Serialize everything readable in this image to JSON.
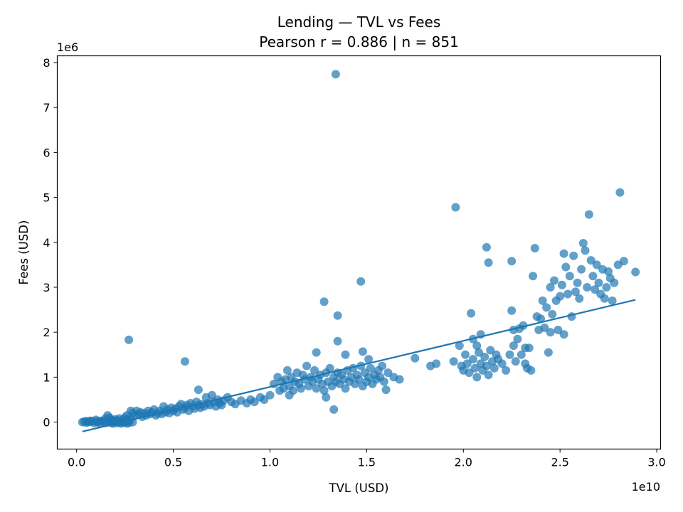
{
  "chart_data": {
    "type": "scatter",
    "title": "Lending — TVL vs Fees",
    "subtitle": "Pearson r = 0.886 | n = 851",
    "xlabel": "TVL (USD)",
    "ylabel": "Fees (USD)",
    "x_offset_label": "1e10",
    "y_offset_label": "1e6",
    "x_scale_factor": 10000000000.0,
    "y_scale_factor": 1000000.0,
    "xlim": [
      -0.1,
      3.02
    ],
    "ylim": [
      -0.6,
      8.15
    ],
    "x_ticks": [
      0.0,
      0.5,
      1.0,
      1.5,
      2.0,
      2.5,
      3.0
    ],
    "x_tick_labels": [
      "0.0",
      "0.5",
      "1.0",
      "1.5",
      "2.0",
      "2.5",
      "3.0"
    ],
    "y_ticks": [
      0,
      1,
      2,
      3,
      4,
      5,
      6,
      7,
      8
    ],
    "y_tick_labels": [
      "0",
      "1",
      "2",
      "3",
      "4",
      "5",
      "6",
      "7",
      "8"
    ],
    "grid": false,
    "legend": "none",
    "point_color": "#1f77b4",
    "point_alpha": 0.7,
    "trend_line": {
      "x": [
        0.03,
        2.89
      ],
      "y": [
        -0.21,
        2.72
      ],
      "color": "#1f77b4"
    },
    "points": [
      [
        0.03,
        0.0
      ],
      [
        0.04,
        0.01
      ],
      [
        0.05,
        0.02
      ],
      [
        0.05,
        -0.01
      ],
      [
        0.06,
        0.0
      ],
      [
        0.07,
        0.03
      ],
      [
        0.07,
        0.01
      ],
      [
        0.08,
        0.02
      ],
      [
        0.09,
        -0.02
      ],
      [
        0.1,
        0.01
      ],
      [
        0.1,
        0.05
      ],
      [
        0.11,
        0.0
      ],
      [
        0.12,
        0.02
      ],
      [
        0.12,
        -0.03
      ],
      [
        0.13,
        0.03
      ],
      [
        0.14,
        0.01
      ],
      [
        0.15,
        0.08
      ],
      [
        0.15,
        -0.02
      ],
      [
        0.16,
        0.15
      ],
      [
        0.16,
        0.02
      ],
      [
        0.17,
        0.0
      ],
      [
        0.17,
        0.1
      ],
      [
        0.18,
        -0.02
      ],
      [
        0.18,
        0.05
      ],
      [
        0.19,
        0.03
      ],
      [
        0.19,
        -0.03
      ],
      [
        0.2,
        0.06
      ],
      [
        0.2,
        0.01
      ],
      [
        0.21,
        -0.02
      ],
      [
        0.21,
        0.04
      ],
      [
        0.22,
        0.0
      ],
      [
        0.22,
        0.08
      ],
      [
        0.23,
        -0.03
      ],
      [
        0.23,
        0.02
      ],
      [
        0.24,
        0.05
      ],
      [
        0.24,
        -0.01
      ],
      [
        0.25,
        0.0
      ],
      [
        0.25,
        0.1
      ],
      [
        0.26,
        -0.03
      ],
      [
        0.26,
        0.05
      ],
      [
        0.26,
        0.15
      ],
      [
        0.27,
        0.03
      ],
      [
        0.27,
        -0.02
      ],
      [
        0.27,
        1.83
      ],
      [
        0.28,
        0.25
      ],
      [
        0.28,
        0.08
      ],
      [
        0.29,
        0.0
      ],
      [
        0.29,
        0.2
      ],
      [
        0.3,
        0.15
      ],
      [
        0.31,
        0.25
      ],
      [
        0.32,
        0.18
      ],
      [
        0.33,
        0.22
      ],
      [
        0.34,
        0.12
      ],
      [
        0.35,
        0.2
      ],
      [
        0.36,
        0.15
      ],
      [
        0.37,
        0.25
      ],
      [
        0.38,
        0.18
      ],
      [
        0.39,
        0.22
      ],
      [
        0.4,
        0.28
      ],
      [
        0.41,
        0.15
      ],
      [
        0.42,
        0.2
      ],
      [
        0.43,
        0.25
      ],
      [
        0.44,
        0.18
      ],
      [
        0.45,
        0.35
      ],
      [
        0.46,
        0.22
      ],
      [
        0.47,
        0.28
      ],
      [
        0.48,
        0.2
      ],
      [
        0.49,
        0.32
      ],
      [
        0.5,
        0.25
      ],
      [
        0.51,
        0.3
      ],
      [
        0.52,
        0.22
      ],
      [
        0.53,
        0.35
      ],
      [
        0.54,
        0.4
      ],
      [
        0.55,
        0.28
      ],
      [
        0.56,
        1.35
      ],
      [
        0.56,
        0.32
      ],
      [
        0.57,
        0.38
      ],
      [
        0.58,
        0.25
      ],
      [
        0.59,
        0.42
      ],
      [
        0.6,
        0.35
      ],
      [
        0.61,
        0.3
      ],
      [
        0.62,
        0.45
      ],
      [
        0.63,
        0.72
      ],
      [
        0.63,
        0.38
      ],
      [
        0.64,
        0.32
      ],
      [
        0.65,
        0.4
      ],
      [
        0.66,
        0.35
      ],
      [
        0.67,
        0.55
      ],
      [
        0.68,
        0.42
      ],
      [
        0.69,
        0.38
      ],
      [
        0.7,
        0.6
      ],
      [
        0.71,
        0.45
      ],
      [
        0.72,
        0.35
      ],
      [
        0.73,
        0.5
      ],
      [
        0.74,
        0.42
      ],
      [
        0.75,
        0.38
      ],
      [
        0.76,
        0.48
      ],
      [
        0.78,
        0.55
      ],
      [
        0.8,
        0.45
      ],
      [
        0.82,
        0.4
      ],
      [
        0.85,
        0.48
      ],
      [
        0.88,
        0.42
      ],
      [
        0.9,
        0.5
      ],
      [
        0.92,
        0.45
      ],
      [
        0.95,
        0.55
      ],
      [
        0.97,
        0.5
      ],
      [
        1.0,
        0.6
      ],
      [
        1.02,
        0.85
      ],
      [
        1.04,
        1.0
      ],
      [
        1.05,
        0.7
      ],
      [
        1.06,
        0.9
      ],
      [
        1.07,
        0.75
      ],
      [
        1.08,
        0.95
      ],
      [
        1.09,
        1.15
      ],
      [
        1.1,
        0.8
      ],
      [
        1.1,
        0.6
      ],
      [
        1.11,
        1.0
      ],
      [
        1.12,
        0.7
      ],
      [
        1.13,
        0.9
      ],
      [
        1.14,
        1.1
      ],
      [
        1.15,
        0.85
      ],
      [
        1.16,
        0.75
      ],
      [
        1.17,
        1.05
      ],
      [
        1.18,
        0.95
      ],
      [
        1.19,
        1.25
      ],
      [
        1.2,
        0.8
      ],
      [
        1.21,
        1.0
      ],
      [
        1.22,
        0.9
      ],
      [
        1.23,
        1.15
      ],
      [
        1.24,
        0.75
      ],
      [
        1.24,
        1.55
      ],
      [
        1.25,
        0.95
      ],
      [
        1.26,
        1.05
      ],
      [
        1.27,
        0.85
      ],
      [
        1.28,
        2.68
      ],
      [
        1.28,
        0.7
      ],
      [
        1.29,
        1.1
      ],
      [
        1.29,
        0.55
      ],
      [
        1.3,
        0.9
      ],
      [
        1.31,
        1.2
      ],
      [
        1.32,
        0.8
      ],
      [
        1.33,
        0.28
      ],
      [
        1.33,
        1.0
      ],
      [
        1.34,
        7.74
      ],
      [
        1.34,
        0.9
      ],
      [
        1.35,
        2.37
      ],
      [
        1.35,
        1.8
      ],
      [
        1.35,
        1.1
      ],
      [
        1.36,
        0.85
      ],
      [
        1.37,
        1.05
      ],
      [
        1.38,
        0.95
      ],
      [
        1.39,
        1.5
      ],
      [
        1.39,
        0.75
      ],
      [
        1.4,
        1.15
      ],
      [
        1.41,
        0.9
      ],
      [
        1.42,
        1.0
      ],
      [
        1.43,
        1.2
      ],
      [
        1.44,
        0.85
      ],
      [
        1.45,
        1.05
      ],
      [
        1.46,
        0.95
      ],
      [
        1.47,
        3.13
      ],
      [
        1.47,
        1.25
      ],
      [
        1.48,
        0.8
      ],
      [
        1.48,
        1.57
      ],
      [
        1.49,
        1.1
      ],
      [
        1.5,
        0.9
      ],
      [
        1.51,
        1.4
      ],
      [
        1.51,
        1.0
      ],
      [
        1.52,
        1.2
      ],
      [
        1.53,
        0.85
      ],
      [
        1.54,
        1.05
      ],
      [
        1.55,
        0.95
      ],
      [
        1.56,
        1.15
      ],
      [
        1.57,
        1.0
      ],
      [
        1.58,
        1.25
      ],
      [
        1.59,
        0.9
      ],
      [
        1.6,
        0.72
      ],
      [
        1.61,
        1.1
      ],
      [
        1.64,
        1.0
      ],
      [
        1.67,
        0.95
      ],
      [
        1.75,
        1.42
      ],
      [
        1.83,
        1.25
      ],
      [
        1.86,
        1.3
      ],
      [
        1.95,
        1.35
      ],
      [
        1.96,
        4.78
      ],
      [
        1.98,
        1.7
      ],
      [
        1.99,
        1.25
      ],
      [
        2.0,
        1.15
      ],
      [
        2.01,
        1.5
      ],
      [
        2.02,
        1.3
      ],
      [
        2.03,
        1.1
      ],
      [
        2.04,
        2.42
      ],
      [
        2.05,
        1.85
      ],
      [
        2.05,
        1.4
      ],
      [
        2.06,
        1.2
      ],
      [
        2.07,
        1.7
      ],
      [
        2.07,
        1.0
      ],
      [
        2.08,
        1.55
      ],
      [
        2.09,
        1.3
      ],
      [
        2.09,
        1.95
      ],
      [
        2.1,
        1.15
      ],
      [
        2.11,
        1.45
      ],
      [
        2.12,
        3.89
      ],
      [
        2.12,
        1.25
      ],
      [
        2.13,
        3.55
      ],
      [
        2.13,
        1.05
      ],
      [
        2.14,
        1.6
      ],
      [
        2.15,
        1.35
      ],
      [
        2.16,
        1.2
      ],
      [
        2.17,
        1.5
      ],
      [
        2.18,
        1.4
      ],
      [
        2.2,
        1.3
      ],
      [
        2.22,
        1.15
      ],
      [
        2.24,
        1.5
      ],
      [
        2.25,
        3.58
      ],
      [
        2.25,
        2.48
      ],
      [
        2.26,
        2.05
      ],
      [
        2.26,
        1.7
      ],
      [
        2.27,
        1.35
      ],
      [
        2.28,
        1.85
      ],
      [
        2.29,
        2.08
      ],
      [
        2.3,
        1.5
      ],
      [
        2.31,
        2.15
      ],
      [
        2.32,
        1.3
      ],
      [
        2.32,
        1.65
      ],
      [
        2.33,
        1.2
      ],
      [
        2.34,
        1.65
      ],
      [
        2.35,
        1.15
      ],
      [
        2.36,
        3.25
      ],
      [
        2.37,
        3.87
      ],
      [
        2.38,
        2.35
      ],
      [
        2.39,
        2.05
      ],
      [
        2.4,
        2.3
      ],
      [
        2.41,
        2.7
      ],
      [
        2.42,
        2.1
      ],
      [
        2.43,
        2.55
      ],
      [
        2.44,
        1.55
      ],
      [
        2.45,
        2.0
      ],
      [
        2.45,
        3.0
      ],
      [
        2.46,
        2.4
      ],
      [
        2.47,
        3.15
      ],
      [
        2.48,
        2.7
      ],
      [
        2.49,
        2.05
      ],
      [
        2.5,
        2.8
      ],
      [
        2.51,
        3.05
      ],
      [
        2.52,
        1.95
      ],
      [
        2.52,
        3.75
      ],
      [
        2.53,
        3.45
      ],
      [
        2.54,
        2.85
      ],
      [
        2.55,
        3.25
      ],
      [
        2.56,
        2.35
      ],
      [
        2.57,
        3.7
      ],
      [
        2.58,
        2.9
      ],
      [
        2.59,
        3.1
      ],
      [
        2.6,
        2.75
      ],
      [
        2.61,
        3.4
      ],
      [
        2.62,
        3.98
      ],
      [
        2.63,
        3.82
      ],
      [
        2.64,
        3.0
      ],
      [
        2.65,
        4.62
      ],
      [
        2.66,
        3.6
      ],
      [
        2.67,
        3.25
      ],
      [
        2.68,
        2.95
      ],
      [
        2.69,
        3.5
      ],
      [
        2.7,
        3.1
      ],
      [
        2.71,
        2.85
      ],
      [
        2.72,
        3.4
      ],
      [
        2.73,
        2.75
      ],
      [
        2.74,
        3.0
      ],
      [
        2.75,
        3.35
      ],
      [
        2.76,
        3.2
      ],
      [
        2.77,
        2.7
      ],
      [
        2.78,
        3.1
      ],
      [
        2.8,
        3.5
      ],
      [
        2.81,
        5.11
      ],
      [
        2.83,
        3.58
      ],
      [
        2.89,
        3.34
      ]
    ]
  }
}
